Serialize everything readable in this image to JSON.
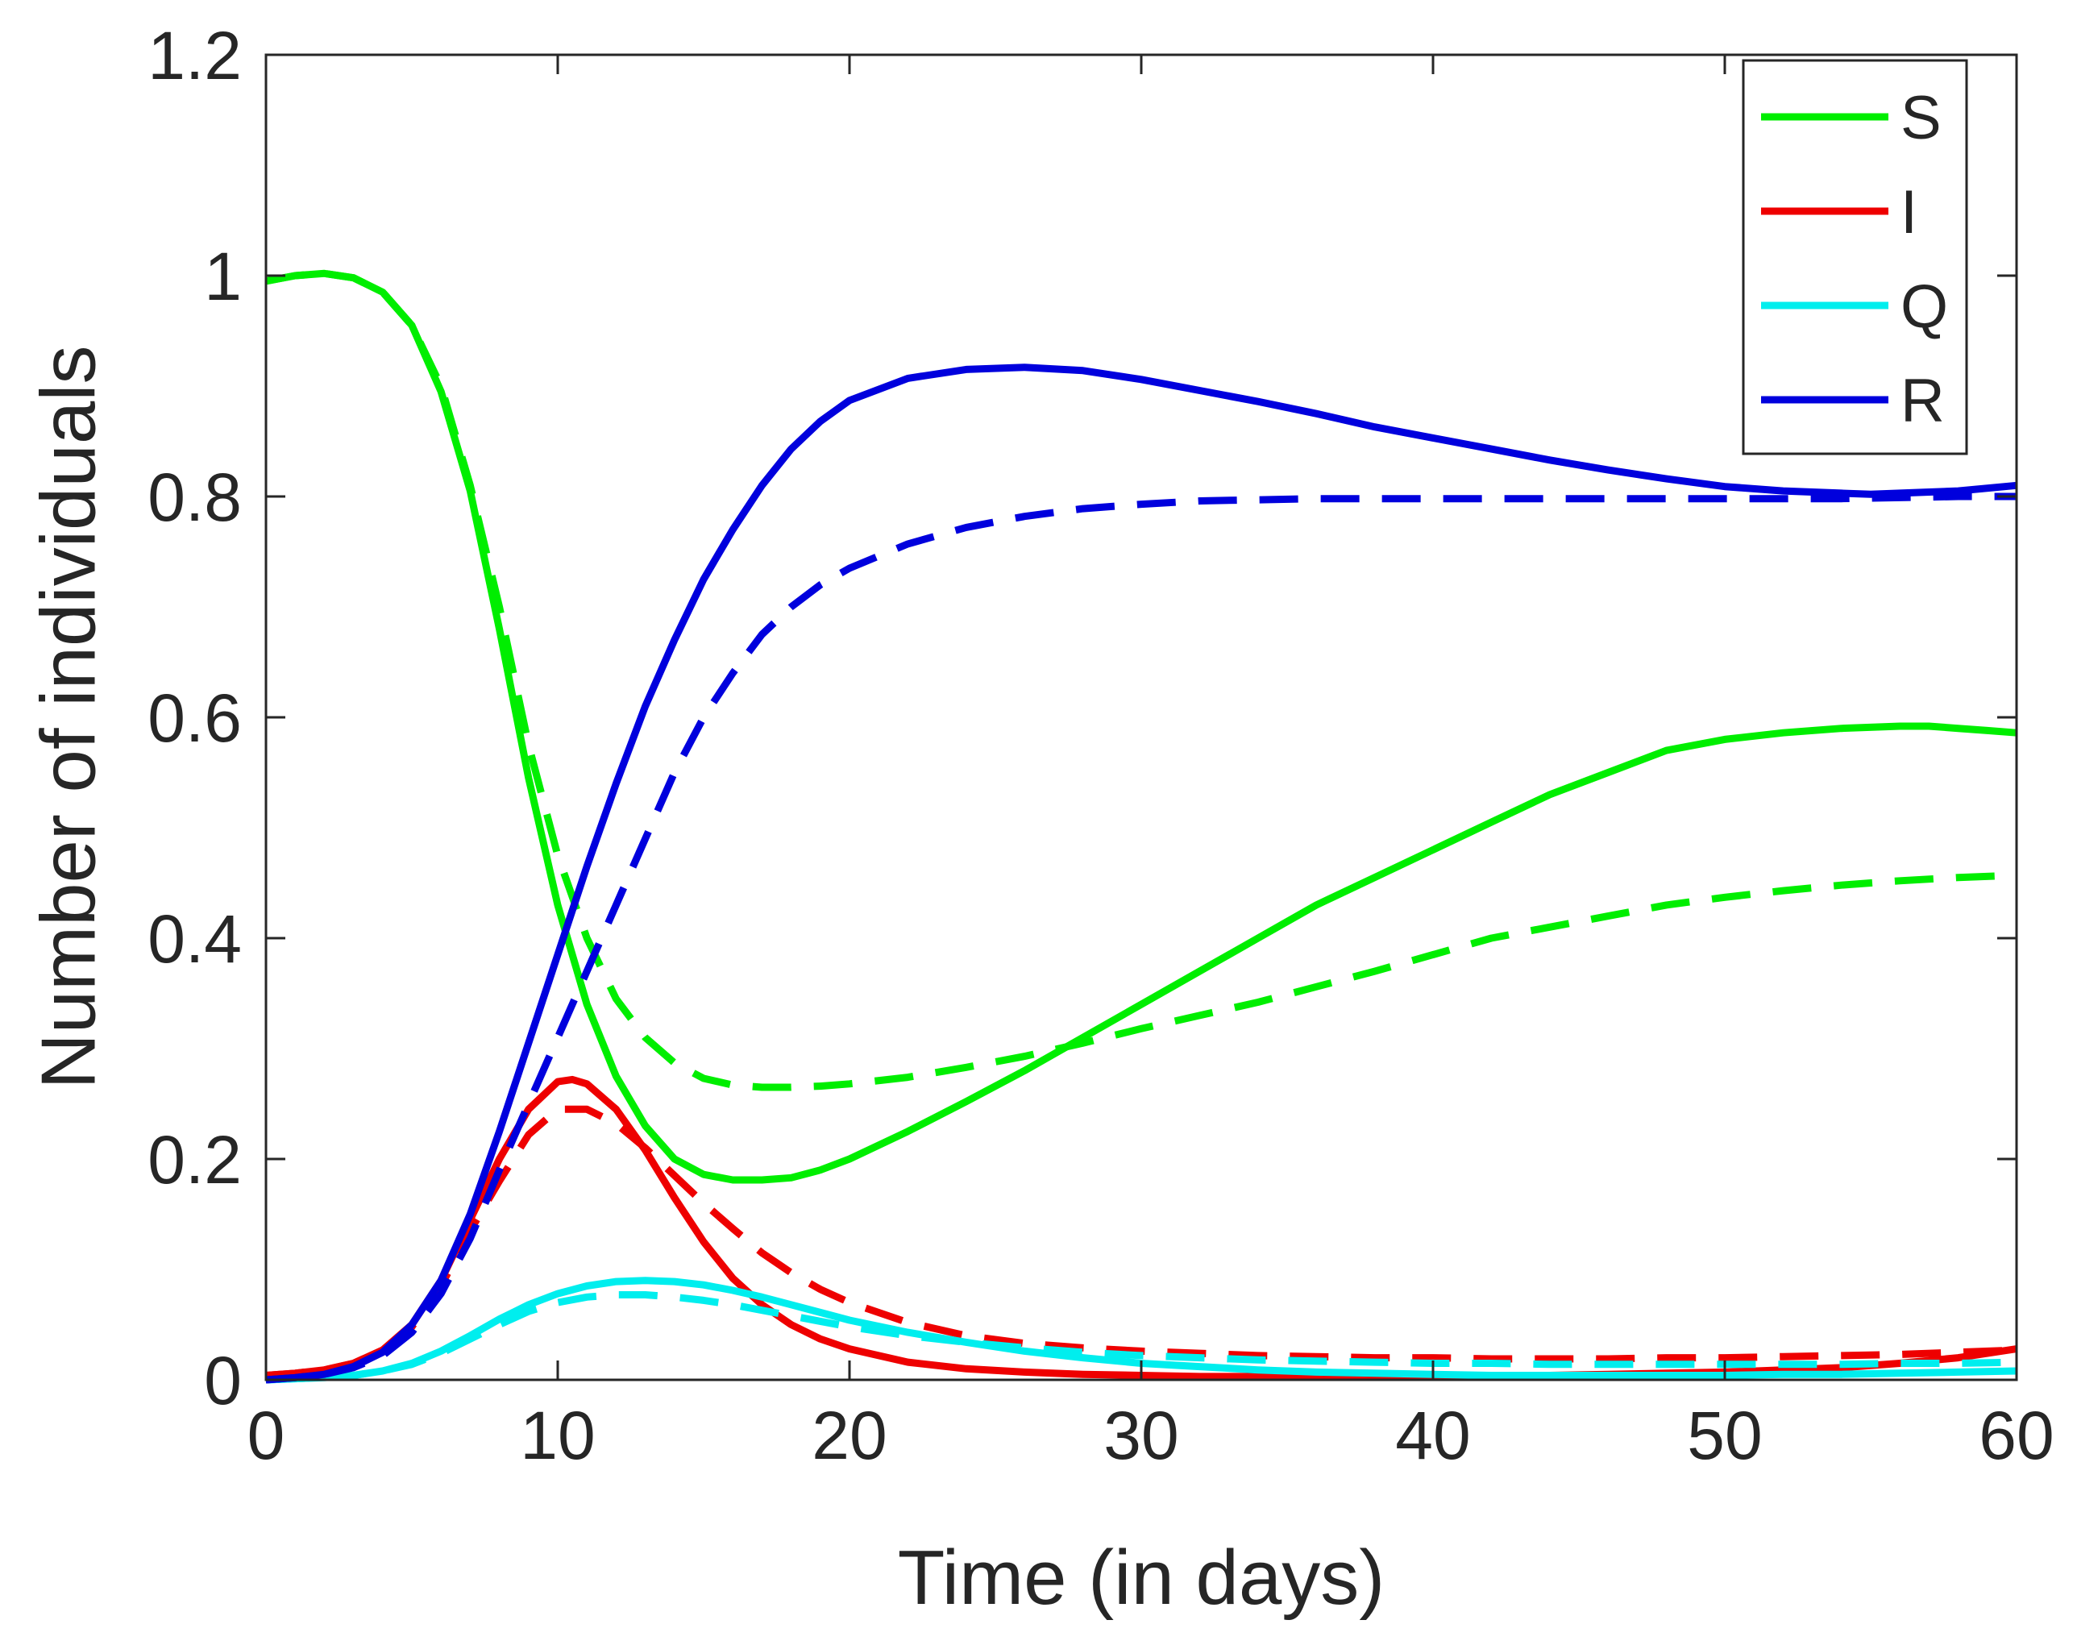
{
  "chart_data": {
    "type": "line",
    "title": "",
    "xlabel": "Time (in days)",
    "ylabel": "Number of individuals",
    "xlim": [
      0,
      60
    ],
    "ylim": [
      0,
      1.2
    ],
    "xticks": [
      0,
      10,
      20,
      30,
      40,
      50,
      60
    ],
    "yticks": [
      0,
      0.2,
      0.4,
      0.6,
      0.8,
      1,
      1.2
    ],
    "xtick_labels": [
      "0",
      "10",
      "20",
      "30",
      "40",
      "50",
      "60"
    ],
    "ytick_labels": [
      "0",
      "0.2",
      "0.4",
      "0.6",
      "0.8",
      "1",
      "1.2"
    ],
    "grid": false,
    "legend_position": "top-right",
    "legend": [
      {
        "label": "S",
        "color": "#00ee00"
      },
      {
        "label": "I",
        "color": "#ee0000"
      },
      {
        "label": "Q",
        "color": "#00eeee"
      },
      {
        "label": "R",
        "color": "#0000dd"
      }
    ],
    "series": [
      {
        "name": "S",
        "style": "solid",
        "color": "#00ee00",
        "x": [
          0,
          1,
          2,
          3,
          4,
          5,
          6,
          7,
          8,
          9,
          10,
          11,
          12,
          13,
          14,
          15,
          16,
          17,
          18,
          19,
          20,
          22,
          24,
          26,
          28,
          30,
          32,
          34,
          36,
          38,
          40,
          42,
          44,
          46,
          48,
          50,
          52,
          54,
          56,
          57,
          58,
          59,
          60
        ],
        "y": [
          0.995,
          1.0,
          1.002,
          0.998,
          0.985,
          0.955,
          0.895,
          0.805,
          0.68,
          0.545,
          0.43,
          0.34,
          0.275,
          0.23,
          0.2,
          0.186,
          0.181,
          0.181,
          0.183,
          0.19,
          0.2,
          0.225,
          0.252,
          0.28,
          0.31,
          0.34,
          0.37,
          0.4,
          0.43,
          0.455,
          0.48,
          0.505,
          0.53,
          0.55,
          0.57,
          0.58,
          0.586,
          0.59,
          0.592,
          0.592,
          0.59,
          0.588,
          0.586
        ]
      },
      {
        "name": "S",
        "style": "dashed",
        "color": "#00ee00",
        "x": [
          0,
          1,
          2,
          3,
          4,
          5,
          6,
          7,
          8,
          9,
          10,
          11,
          12,
          13,
          14,
          15,
          16,
          17,
          18,
          19,
          20,
          22,
          24,
          26,
          28,
          30,
          32,
          34,
          36,
          38,
          40,
          42,
          44,
          46,
          48,
          50,
          52,
          54,
          56,
          58,
          60
        ],
        "y": [
          0.995,
          1.0,
          1.002,
          0.998,
          0.985,
          0.955,
          0.9,
          0.81,
          0.7,
          0.575,
          0.475,
          0.4,
          0.345,
          0.31,
          0.287,
          0.273,
          0.267,
          0.265,
          0.265,
          0.266,
          0.268,
          0.274,
          0.283,
          0.293,
          0.305,
          0.318,
          0.33,
          0.342,
          0.356,
          0.37,
          0.385,
          0.4,
          0.41,
          0.42,
          0.43,
          0.437,
          0.443,
          0.448,
          0.452,
          0.455,
          0.457
        ]
      },
      {
        "name": "I",
        "style": "solid",
        "color": "#ee0000",
        "x": [
          0,
          1,
          2,
          3,
          4,
          5,
          6,
          7,
          8,
          9,
          10,
          10.5,
          11,
          12,
          13,
          14,
          15,
          16,
          17,
          18,
          19,
          20,
          22,
          24,
          26,
          28,
          30,
          32,
          34,
          36,
          38,
          40,
          42,
          44,
          46,
          48,
          50,
          52,
          54,
          56,
          58,
          60
        ],
        "y": [
          0.004,
          0.006,
          0.009,
          0.015,
          0.027,
          0.05,
          0.09,
          0.145,
          0.2,
          0.245,
          0.27,
          0.272,
          0.268,
          0.245,
          0.208,
          0.165,
          0.125,
          0.092,
          0.068,
          0.05,
          0.037,
          0.028,
          0.016,
          0.01,
          0.007,
          0.005,
          0.004,
          0.003,
          0.003,
          0.003,
          0.003,
          0.003,
          0.003,
          0.004,
          0.005,
          0.006,
          0.007,
          0.009,
          0.011,
          0.015,
          0.02,
          0.028
        ]
      },
      {
        "name": "I",
        "style": "dashed",
        "color": "#ee0000",
        "x": [
          0,
          1,
          2,
          3,
          4,
          5,
          6,
          7,
          8,
          9,
          10,
          11,
          12,
          13,
          14,
          15,
          16,
          17,
          18,
          19,
          20,
          22,
          24,
          26,
          28,
          30,
          32,
          34,
          36,
          38,
          40,
          42,
          44,
          46,
          48,
          50,
          52,
          54,
          56,
          58,
          60
        ],
        "y": [
          0.004,
          0.006,
          0.009,
          0.015,
          0.027,
          0.048,
          0.085,
          0.135,
          0.18,
          0.222,
          0.245,
          0.245,
          0.232,
          0.21,
          0.185,
          0.16,
          0.137,
          0.115,
          0.097,
          0.082,
          0.07,
          0.052,
          0.04,
          0.033,
          0.029,
          0.026,
          0.024,
          0.022,
          0.021,
          0.02,
          0.02,
          0.019,
          0.019,
          0.019,
          0.02,
          0.02,
          0.021,
          0.022,
          0.023,
          0.025,
          0.027
        ]
      },
      {
        "name": "Q",
        "style": "solid",
        "color": "#00eeee",
        "x": [
          0,
          1,
          2,
          3,
          4,
          5,
          6,
          7,
          8,
          9,
          10,
          11,
          12,
          13,
          14,
          15,
          16,
          17,
          18,
          19,
          20,
          22,
          24,
          26,
          28,
          30,
          32,
          34,
          36,
          38,
          40,
          42,
          44,
          46,
          48,
          50,
          52,
          54,
          56,
          58,
          60
        ],
        "y": [
          0.0,
          0.001,
          0.002,
          0.004,
          0.008,
          0.015,
          0.026,
          0.04,
          0.055,
          0.068,
          0.078,
          0.085,
          0.089,
          0.09,
          0.089,
          0.086,
          0.081,
          0.075,
          0.068,
          0.061,
          0.054,
          0.043,
          0.034,
          0.026,
          0.02,
          0.015,
          0.012,
          0.009,
          0.007,
          0.006,
          0.005,
          0.004,
          0.004,
          0.004,
          0.004,
          0.004,
          0.005,
          0.005,
          0.006,
          0.007,
          0.008
        ]
      },
      {
        "name": "Q",
        "style": "dashed",
        "color": "#00eeee",
        "x": [
          0,
          1,
          2,
          3,
          4,
          5,
          6,
          7,
          8,
          9,
          10,
          11,
          12,
          13,
          14,
          15,
          16,
          17,
          18,
          19,
          20,
          22,
          24,
          26,
          28,
          30,
          32,
          34,
          36,
          38,
          40,
          42,
          44,
          46,
          48,
          50,
          52,
          54,
          56,
          58,
          60
        ],
        "y": [
          0.0,
          0.001,
          0.002,
          0.004,
          0.008,
          0.014,
          0.024,
          0.037,
          0.05,
          0.062,
          0.07,
          0.075,
          0.077,
          0.077,
          0.075,
          0.072,
          0.068,
          0.063,
          0.058,
          0.053,
          0.048,
          0.04,
          0.034,
          0.029,
          0.025,
          0.022,
          0.02,
          0.018,
          0.017,
          0.016,
          0.015,
          0.015,
          0.014,
          0.014,
          0.014,
          0.014,
          0.014,
          0.014,
          0.015,
          0.015,
          0.016
        ]
      },
      {
        "name": "R",
        "style": "solid",
        "color": "#0000dd",
        "x": [
          0,
          1,
          2,
          3,
          4,
          5,
          6,
          7,
          8,
          9,
          10,
          11,
          12,
          13,
          14,
          15,
          16,
          17,
          18,
          19,
          20,
          22,
          24,
          26,
          28,
          30,
          32,
          34,
          36,
          38,
          40,
          42,
          44,
          46,
          48,
          50,
          52,
          54,
          55,
          56,
          58,
          60
        ],
        "y": [
          0.0,
          0.002,
          0.005,
          0.012,
          0.025,
          0.05,
          0.09,
          0.15,
          0.225,
          0.305,
          0.385,
          0.465,
          0.54,
          0.61,
          0.67,
          0.725,
          0.77,
          0.81,
          0.843,
          0.868,
          0.887,
          0.907,
          0.915,
          0.917,
          0.914,
          0.906,
          0.896,
          0.886,
          0.875,
          0.863,
          0.853,
          0.843,
          0.833,
          0.824,
          0.816,
          0.809,
          0.805,
          0.803,
          0.802,
          0.803,
          0.805,
          0.81
        ]
      },
      {
        "name": "R",
        "style": "dashed",
        "color": "#0000dd",
        "x": [
          0,
          1,
          2,
          3,
          4,
          5,
          6,
          7,
          8,
          9,
          10,
          11,
          12,
          13,
          14,
          15,
          16,
          17,
          18,
          19,
          20,
          22,
          24,
          26,
          28,
          30,
          32,
          34,
          36,
          38,
          40,
          42,
          44,
          46,
          48,
          50,
          52,
          54,
          56,
          58,
          60
        ],
        "y": [
          0.0,
          0.002,
          0.005,
          0.011,
          0.022,
          0.043,
          0.078,
          0.128,
          0.19,
          0.25,
          0.31,
          0.37,
          0.43,
          0.49,
          0.55,
          0.6,
          0.64,
          0.675,
          0.7,
          0.72,
          0.735,
          0.757,
          0.772,
          0.782,
          0.789,
          0.793,
          0.796,
          0.797,
          0.798,
          0.798,
          0.798,
          0.798,
          0.798,
          0.798,
          0.798,
          0.798,
          0.798,
          0.798,
          0.799,
          0.8,
          0.8
        ]
      }
    ]
  }
}
